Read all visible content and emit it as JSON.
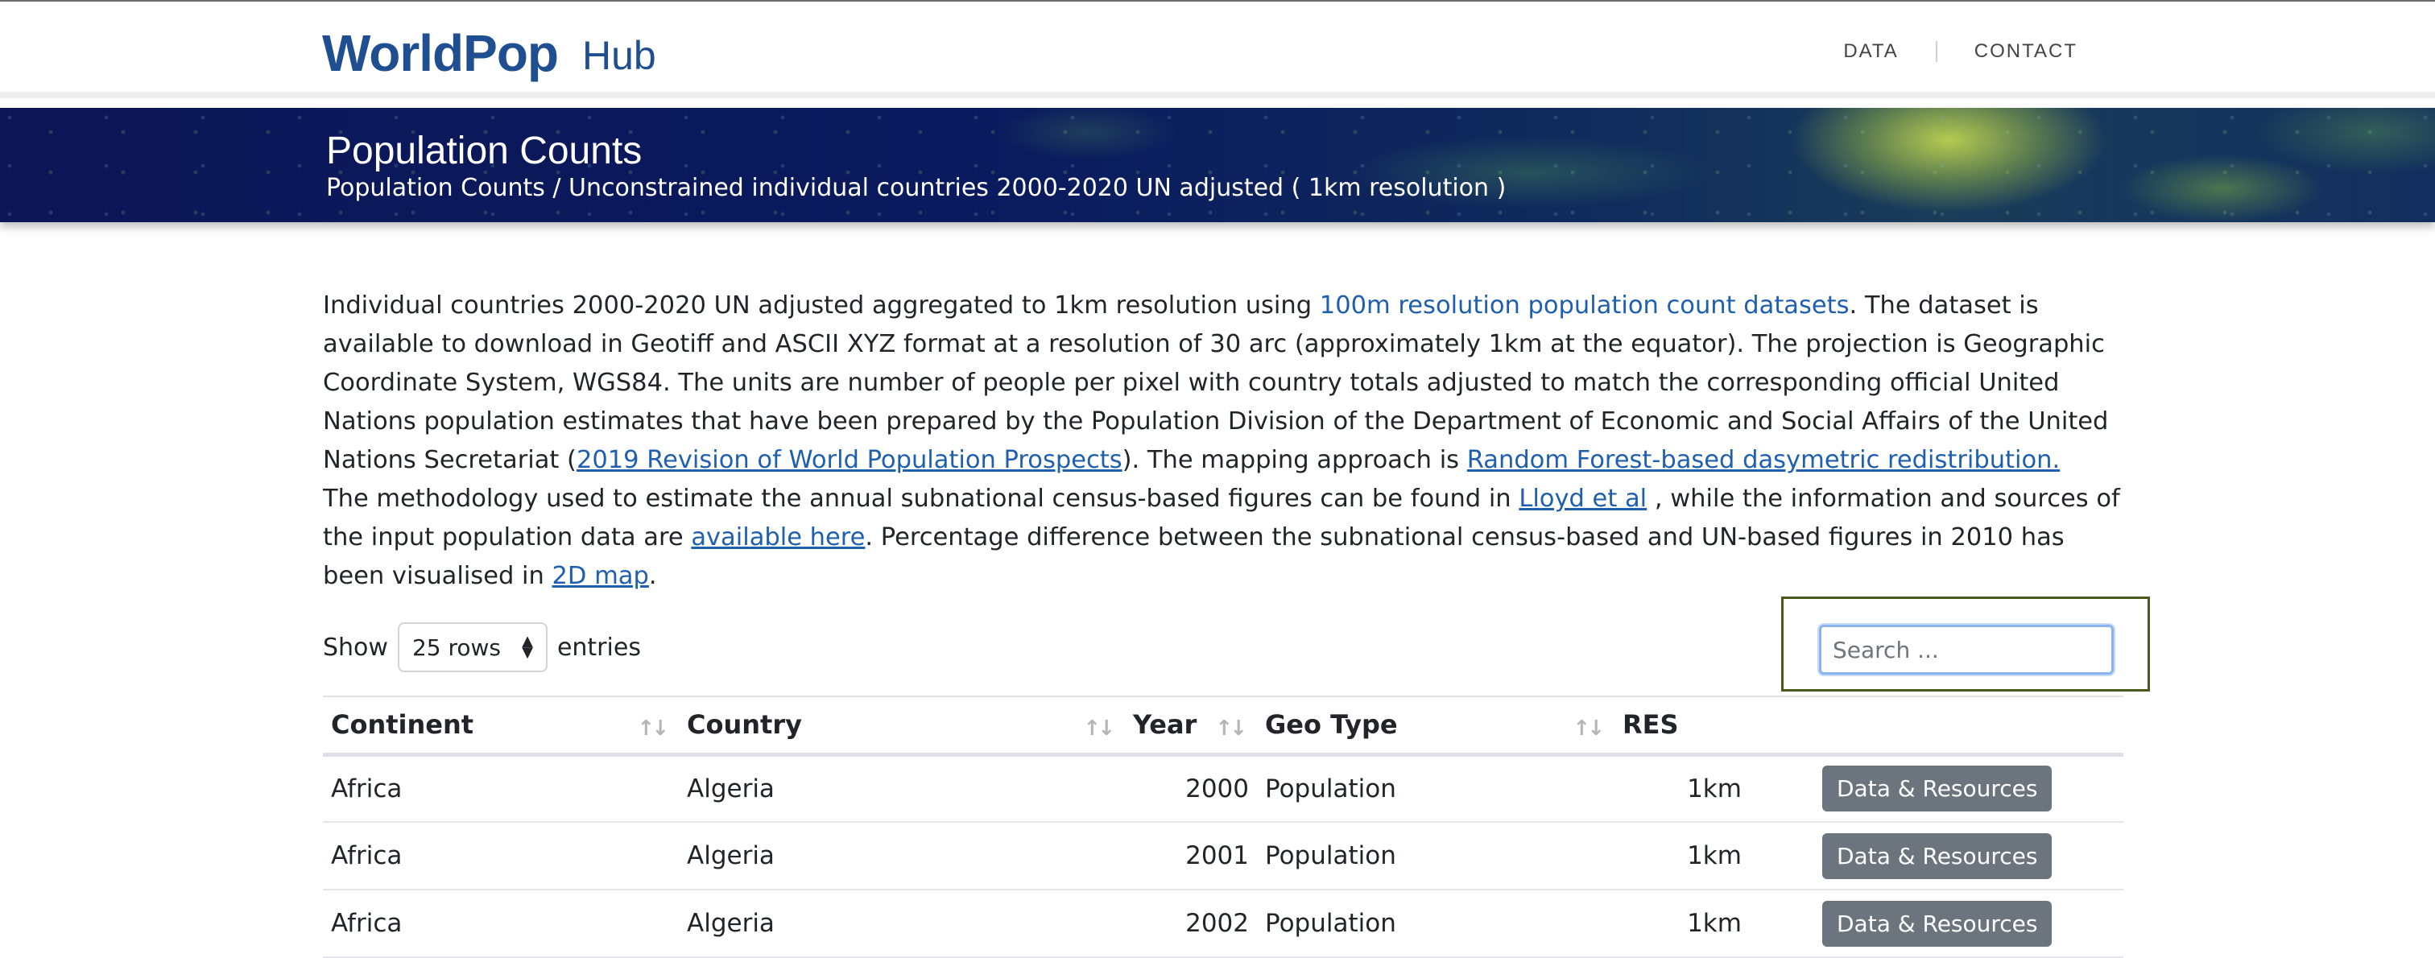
{
  "brand": {
    "logo": "WorldPop",
    "suffix": "Hub",
    "color": "#1f4f91"
  },
  "nav": {
    "items": [
      "DATA",
      "CONTACT"
    ]
  },
  "hero": {
    "title": "Population Counts",
    "breadcrumb": "Population Counts / Unconstrained individual countries 2000-2020 UN adjusted ( 1km resolution )"
  },
  "description": {
    "p1_a": "Individual countries 2000-2020 UN adjusted aggregated to 1km resolution using ",
    "p1_link1": "100m resolution population count datasets",
    "p1_b": ". The dataset is available to download in Geotiff and ASCII XYZ format at a resolution of 30 arc (approximately 1km at the equator). The projection is Geographic Coordinate System, WGS84. The units are number of people per pixel with country totals adjusted to match the corresponding official United Nations population estimates that have been prepared by the Population Division of the Department of Economic and Social Affairs of the United Nations Secretariat (",
    "p1_link2": "2019 Revision of World Population Prospects",
    "p1_c": "). The mapping  approach is ",
    "p1_link3": "Random Forest-based dasymetric redistribution.",
    "p2_a": "The methodology used to estimate the annual subnational census-based figures can be found in ",
    "p2_link1": "Lloyd et al",
    "p2_b": " , while the information and sources of the input population data are ",
    "p2_link2": "available here",
    "p2_c": ".  Percentage difference between the subnational census-based and UN-based figures in 2010 has been visualised in ",
    "p2_link3": "2D map",
    "p2_d": "."
  },
  "controls": {
    "show_label": "Show",
    "rows_value": "25 rows",
    "entries_label": "entries",
    "search_placeholder": "Search ..."
  },
  "table": {
    "headers": [
      "Continent",
      "Country",
      "Year",
      "Geo Type",
      "RES"
    ],
    "rows": [
      {
        "continent": "Africa",
        "country": "Algeria",
        "year": "2000",
        "geotype": "Population",
        "res": "1km",
        "action": "Data & Resources"
      },
      {
        "continent": "Africa",
        "country": "Algeria",
        "year": "2001",
        "geotype": "Population",
        "res": "1km",
        "action": "Data & Resources"
      },
      {
        "continent": "Africa",
        "country": "Algeria",
        "year": "2002",
        "geotype": "Population",
        "res": "1km",
        "action": "Data & Resources"
      }
    ]
  },
  "colors": {
    "link": "#1f5fb0",
    "button": "#6c757d",
    "search_highlight": "#4a5a1c",
    "hero_bg": "#0c1656"
  }
}
